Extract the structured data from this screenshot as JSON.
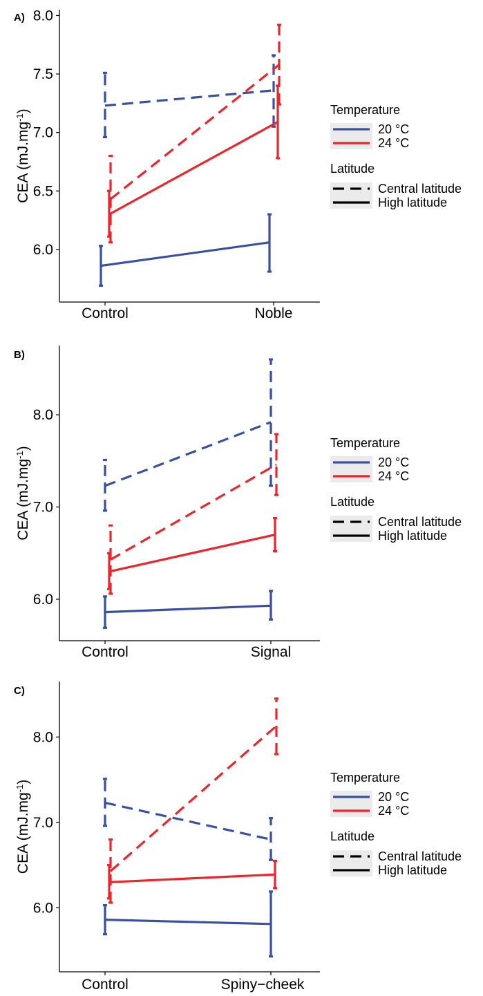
{
  "colors": {
    "temp_20": "#3a4fa0",
    "temp_24": "#e8262c",
    "axis": "#000000",
    "legend_key_bg": "#ebebeb"
  },
  "legend": {
    "temperature_title": "Temperature",
    "temperature_items": [
      "20 °C",
      "24 °C"
    ],
    "latitude_title": "Latitude",
    "latitude_items": [
      "Central latitude",
      "High latitude"
    ]
  },
  "chart_data": [
    {
      "type": "line",
      "panel_label": "A)",
      "ylabel": "CEA (mJ.mg-1)",
      "categories": [
        "Control",
        "Noble"
      ],
      "ylim": [
        5.55,
        8.05
      ],
      "yticks": [
        "6.0",
        "6.5",
        "7.0",
        "7.5",
        "8.0"
      ],
      "series": [
        {
          "temperature": "20 °C",
          "latitude": "Central latitude",
          "values": [
            7.23,
            7.36
          ],
          "errors": [
            [
              6.96,
              7.51
            ],
            [
              7.05,
              7.66
            ]
          ]
        },
        {
          "temperature": "24 °C",
          "latitude": "Central latitude",
          "values": [
            6.43,
            7.58
          ],
          "errors": [
            [
              6.06,
              6.8
            ],
            [
              7.24,
              7.92
            ]
          ]
        },
        {
          "temperature": "24 °C",
          "latitude": "High latitude",
          "values": [
            6.3,
            7.09
          ],
          "errors": [
            [
              6.11,
              6.5
            ],
            [
              6.78,
              7.4
            ]
          ]
        },
        {
          "temperature": "20 °C",
          "latitude": "High latitude",
          "values": [
            5.86,
            6.06
          ],
          "errors": [
            [
              5.69,
              6.03
            ],
            [
              5.81,
              6.3
            ]
          ]
        }
      ]
    },
    {
      "type": "line",
      "panel_label": "B)",
      "ylabel": "CEA (mJ.mg-1)",
      "categories": [
        "Control",
        "Signal"
      ],
      "ylim": [
        5.55,
        8.75
      ],
      "yticks": [
        "6.0",
        "7.0",
        "8.0"
      ],
      "series": [
        {
          "temperature": "20 °C",
          "latitude": "Central latitude",
          "values": [
            7.23,
            7.92
          ],
          "errors": [
            [
              6.96,
              7.51
            ],
            [
              7.23,
              8.6
            ]
          ]
        },
        {
          "temperature": "24 °C",
          "latitude": "Central latitude",
          "values": [
            6.43,
            7.46
          ],
          "errors": [
            [
              6.06,
              6.8
            ],
            [
              7.13,
              7.79
            ]
          ]
        },
        {
          "temperature": "24 °C",
          "latitude": "High latitude",
          "values": [
            6.3,
            6.7
          ],
          "errors": [
            [
              6.11,
              6.5
            ],
            [
              6.52,
              6.88
            ]
          ]
        },
        {
          "temperature": "20 °C",
          "latitude": "High latitude",
          "values": [
            5.86,
            5.93
          ],
          "errors": [
            [
              5.69,
              6.03
            ],
            [
              5.78,
              6.09
            ]
          ]
        }
      ]
    },
    {
      "type": "line",
      "panel_label": "C)",
      "ylabel": "CEA (mJ.mg-1)",
      "categories": [
        "Control",
        "Spiny−cheek"
      ],
      "ylim": [
        5.25,
        8.65
      ],
      "yticks": [
        "6.0",
        "7.0",
        "8.0"
      ],
      "series": [
        {
          "temperature": "20 °C",
          "latitude": "Central latitude",
          "values": [
            7.23,
            6.8
          ],
          "errors": [
            [
              6.96,
              7.51
            ],
            [
              6.56,
              7.05
            ]
          ]
        },
        {
          "temperature": "24 °C",
          "latitude": "Central latitude",
          "values": [
            6.43,
            8.13
          ],
          "errors": [
            [
              6.06,
              6.8
            ],
            [
              7.8,
              8.45
            ]
          ]
        },
        {
          "temperature": "24 °C",
          "latitude": "High latitude",
          "values": [
            6.3,
            6.39
          ],
          "errors": [
            [
              6.11,
              6.5
            ],
            [
              6.23,
              6.55
            ]
          ]
        },
        {
          "temperature": "20 °C",
          "latitude": "High latitude",
          "values": [
            5.86,
            5.81
          ],
          "errors": [
            [
              5.69,
              6.03
            ],
            [
              5.43,
              6.19
            ]
          ]
        }
      ]
    }
  ]
}
